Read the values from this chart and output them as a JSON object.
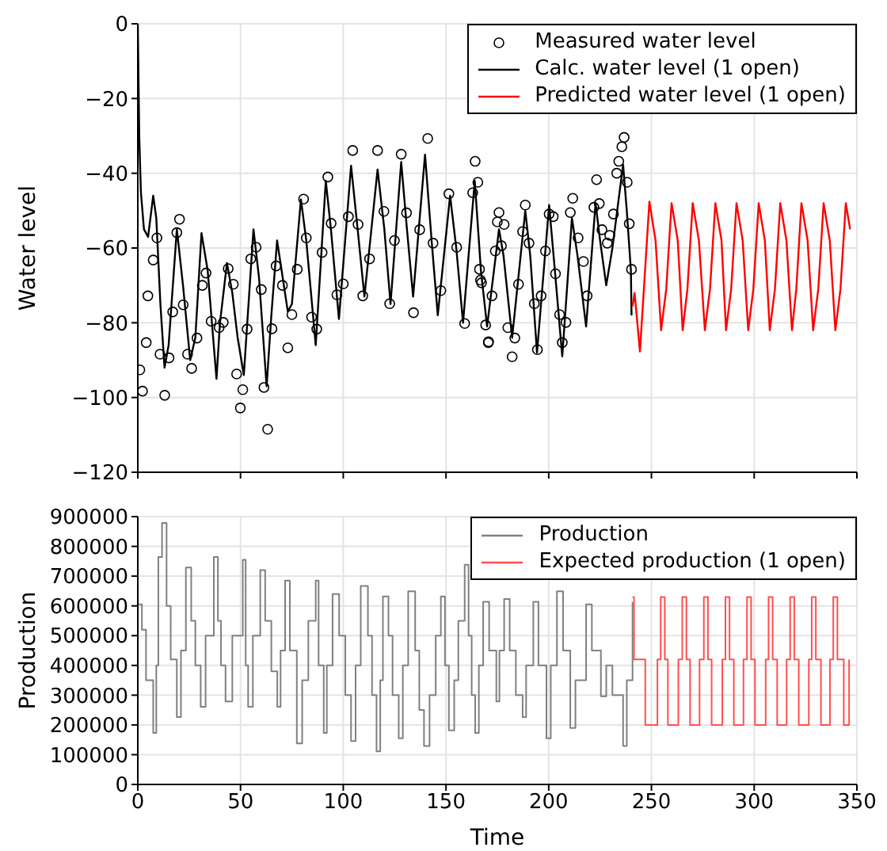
{
  "chart_data": [
    {
      "type": "line",
      "ylabel": "Water level",
      "xlim": [
        0,
        350
      ],
      "xticks": [
        0,
        50,
        100,
        150,
        200,
        250,
        300,
        350
      ],
      "ylim": [
        -120,
        0
      ],
      "yticks": [
        -120,
        -100,
        -80,
        -60,
        -40,
        -20,
        0
      ],
      "tick_labels": "y",
      "grid": true,
      "legend": "top right",
      "series": [
        {
          "name": "Measured water level",
          "type": "scatter",
          "marker": "circle",
          "color": "#000000",
          "x": [
            1.0,
            2.3,
            4.1,
            4.9,
            7.5,
            9.3,
            10.8,
            13.1,
            15.2,
            17.0,
            19.0,
            20.3,
            22.1,
            24.2,
            26.2,
            28.8,
            31.4,
            33.2,
            35.7,
            39.6,
            41.6,
            44.0,
            46.5,
            48.1,
            49.9,
            51.1,
            53.2,
            55.0,
            57.6,
            60.1,
            61.4,
            63.2,
            65.3,
            67.3,
            70.4,
            73.0,
            75.0,
            77.6,
            80.7,
            82.0,
            84.6,
            87.1,
            89.7,
            92.5,
            94.1,
            96.9,
            100.0,
            102.5,
            104.6,
            107.2,
            109.5,
            112.8,
            116.7,
            119.8,
            122.6,
            124.9,
            128.2,
            130.8,
            134.2,
            137.2,
            141.1,
            143.7,
            147.5,
            151.4,
            155.2,
            159.1,
            163.0,
            164.2,
            166.8,
            170.7,
            175.0,
            165.5,
            166.3,
            167.3,
            169.3,
            170.6,
            172.4,
            174.0,
            175.8,
            177.0,
            178.3,
            180.1,
            182.2,
            183.5,
            185.3,
            187.3,
            188.6,
            190.4,
            193.0,
            194.5,
            196.3,
            198.4,
            200.2,
            202.2,
            203.3,
            205.3,
            206.6,
            208.4,
            210.5,
            211.7,
            214.3,
            216.9,
            218.7,
            222.0,
            223.3,
            224.6,
            225.9,
            228.5,
            229.7,
            231.5,
            233.1,
            234.1,
            235.6,
            236.7,
            238.2,
            239.2,
            240.3
          ],
          "values": [
            -92.6,
            -98.3,
            -85.3,
            -72.8,
            -63.2,
            -57.3,
            -88.4,
            -99.4,
            -89.4,
            -77.1,
            -55.9,
            -52.3,
            -75.2,
            -88.4,
            -92.2,
            -84.1,
            -70.0,
            -66.7,
            -79.6,
            -81.3,
            -79.9,
            -65.5,
            -69.7,
            -93.7,
            -102.8,
            -97.9,
            -81.7,
            -62.9,
            -59.8,
            -71.1,
            -97.3,
            -108.5,
            -81.6,
            -64.8,
            -70.0,
            -86.7,
            -77.8,
            -65.7,
            -46.9,
            -57.3,
            -78.5,
            -81.7,
            -61.2,
            -41.0,
            -53.4,
            -72.5,
            -69.6,
            -51.6,
            -33.9,
            -53.7,
            -72.8,
            -62.9,
            -33.9,
            -50.2,
            -74.9,
            -58.0,
            -34.9,
            -50.6,
            -77.3,
            -55.1,
            -30.7,
            -58.7,
            -71.4,
            -45.5,
            -59.8,
            -80.2,
            -45.2,
            -36.8,
            -68.6,
            -85.1,
            -53.0,
            -42.4,
            -65.7,
            -69.3,
            -80.6,
            -85.3,
            -72.8,
            -60.8,
            -50.5,
            -59.4,
            -53.7,
            -81.3,
            -89.1,
            -84.1,
            -69.7,
            -55.6,
            -48.5,
            -58.7,
            -74.9,
            -87.2,
            -72.8,
            -60.8,
            -50.9,
            -51.6,
            -66.9,
            -77.8,
            -85.3,
            -79.9,
            -50.5,
            -46.7,
            -57.3,
            -63.6,
            -72.8,
            -49.1,
            -41.7,
            -48.1,
            -55.1,
            -58.7,
            -56.6,
            -50.9,
            -40.0,
            -36.8,
            -32.9,
            -30.4,
            -42.4,
            -53.5,
            -65.7
          ]
        },
        {
          "name": "Calc. water level (1 open)",
          "type": "line",
          "color": "#000000",
          "x": [
            0,
            0.7,
            1.5,
            3,
            5,
            7.5,
            9,
            11,
            13,
            15,
            19,
            22,
            25.5,
            28,
            31,
            34,
            38.3,
            40,
            43.4,
            46,
            48.6,
            51.6,
            56.3,
            59,
            62.7,
            65,
            67.8,
            70,
            73,
            75,
            79.4,
            82,
            86.6,
            91.5,
            94,
            97.9,
            103.8,
            107,
            110.3,
            116.7,
            120,
            123,
            128.2,
            131,
            134,
            139.8,
            143,
            146,
            152,
            155,
            158.3,
            164,
            167,
            170,
            175.8,
            178,
            182.2,
            188.6,
            191,
            194.3,
            200.2,
            203,
            206.6,
            211.3,
            214,
            218.2,
            222.8,
            225,
            228,
            231,
            236.2,
            238,
            240,
            240.3
          ],
          "values": [
            0,
            -30,
            -45,
            -55,
            -57,
            -46,
            -52,
            -75,
            -92,
            -86,
            -55,
            -70,
            -90,
            -84,
            -56,
            -66,
            -95,
            -80,
            -64,
            -72,
            -84,
            -94,
            -55,
            -68,
            -97,
            -78,
            -58,
            -66,
            -77,
            -75,
            -47,
            -58,
            -86,
            -42,
            -55,
            -79,
            -38,
            -55,
            -73,
            -39,
            -55,
            -75,
            -37,
            -55,
            -73,
            -35,
            -58,
            -78,
            -46,
            -60,
            -80,
            -42,
            -66,
            -81,
            -55,
            -62,
            -84,
            -50,
            -62,
            -88,
            -48.5,
            -66,
            -89,
            -52,
            -62,
            -81,
            -48,
            -58,
            -70,
            -60,
            -37.7,
            -50,
            -66,
            -78
          ]
        },
        {
          "name": "Predicted water level (1 open)",
          "type": "line",
          "color": "#ff0000",
          "x": [
            240.8,
            241.8,
            244.4,
            249.0,
            252.0,
            254.7,
            257.2,
            259.8,
            262.8,
            265.2,
            267.5,
            270.1,
            273.1,
            276.0,
            278.5,
            281.1,
            284.1,
            286.3,
            288.8,
            291.4,
            294.4,
            297.1,
            299.6,
            302.2,
            305.2,
            307.6,
            310.1,
            312.7,
            315.7,
            318.4,
            320.5,
            323.0,
            326.0,
            328.7,
            331.2,
            333.8,
            336.8,
            339.5,
            342.0,
            344.6,
            346.7
          ],
          "values": [
            -75.6,
            -72,
            -87.7,
            -47.6,
            -58,
            -82,
            -71,
            -48,
            -58,
            -82,
            -71,
            -48,
            -58,
            -82,
            -71,
            -48,
            -58,
            -82,
            -71,
            -48,
            -58,
            -82,
            -71,
            -48,
            -58,
            -82,
            -71,
            -48,
            -58,
            -82,
            -71,
            -48,
            -58,
            -82,
            -71,
            -48,
            -58,
            -82,
            -71,
            -48,
            -55
          ]
        }
      ]
    },
    {
      "type": "step",
      "xlabel": "Time",
      "ylabel": "Production",
      "xlim": [
        0,
        350
      ],
      "xticks": [
        0,
        50,
        100,
        150,
        200,
        250,
        300,
        350
      ],
      "ylim": [
        0,
        900000
      ],
      "yticks": [
        0,
        100000,
        200000,
        300000,
        400000,
        500000,
        600000,
        700000,
        800000,
        900000
      ],
      "grid": true,
      "legend": "top right",
      "series": [
        {
          "name": "Production",
          "color": "#808080",
          "x": [
            0,
            2,
            4,
            7.5,
            9,
            10,
            11.8,
            14,
            16,
            19,
            21,
            23.4,
            26,
            28,
            30.6,
            33,
            37,
            39,
            40.5,
            42.7,
            46,
            51.1,
            52.5,
            53.7,
            56,
            59.6,
            62,
            65,
            67.9,
            69.5,
            71.7,
            74,
            77.4,
            80,
            83,
            86.6,
            88,
            90.5,
            92,
            94.8,
            98,
            101,
            103.8,
            106,
            108.5,
            112,
            114,
            116.2,
            118,
            119.3,
            122,
            124,
            127,
            129,
            131.6,
            135,
            137,
            139.3,
            142,
            145,
            147.5,
            149.5,
            151.4,
            154,
            156,
            159.1,
            161,
            162.5,
            164.2,
            166,
            168.1,
            171,
            174.5,
            176,
            178.3,
            181,
            184,
            187.3,
            189,
            192.5,
            195,
            198.9,
            201,
            204.0,
            207,
            210.5,
            213,
            218.2,
            221,
            225.4,
            228,
            231,
            236.2,
            238,
            240.8
          ],
          "values": [
            605000,
            520000,
            350000,
            173000,
            400000,
            764000,
            879000,
            600000,
            420000,
            226000,
            450000,
            729000,
            550000,
            400000,
            261000,
            500000,
            764000,
            550000,
            400000,
            279000,
            500000,
            755000,
            400000,
            261000,
            500000,
            720000,
            550000,
            380000,
            261000,
            450000,
            685000,
            450000,
            138000,
            350000,
            550000,
            685000,
            400000,
            173000,
            400000,
            640000,
            500000,
            300000,
            146000,
            400000,
            667000,
            500000,
            300000,
            111000,
            350000,
            632000,
            500000,
            300000,
            155000,
            400000,
            649000,
            450000,
            250000,
            129000,
            300000,
            500000,
            632000,
            400000,
            182000,
            350000,
            550000,
            738000,
            500000,
            300000,
            173000,
            400000,
            614000,
            450000,
            279000,
            450000,
            623000,
            450000,
            300000,
            226000,
            400000,
            614000,
            400000,
            155000,
            400000,
            649000,
            450000,
            190000,
            350000,
            605000,
            450000,
            296000,
            400000,
            300000,
            129000,
            350000,
            614000
          ]
        },
        {
          "name": "Expected production (1 open)",
          "color": "#ff5050",
          "x": [
            240.8,
            241.5,
            247.0,
            252.9,
            254.5,
            256.5,
            258.0,
            263.1,
            265,
            267,
            268.8,
            273.4,
            275.5,
            277.5,
            279.3,
            284.5,
            286,
            288,
            290.1,
            294.8,
            296.5,
            298.5,
            300.4,
            305.6,
            307,
            309,
            311.2,
            315.8,
            317.5,
            319.5,
            321.7,
            326.6,
            328,
            330,
            332.5,
            336.9,
            338.5,
            340.5,
            343.6,
            346.2
          ],
          "values": [
            630000,
            420000,
            200000,
            420000,
            630000,
            420000,
            200000,
            420000,
            630000,
            420000,
            200000,
            420000,
            630000,
            420000,
            200000,
            420000,
            630000,
            420000,
            200000,
            420000,
            630000,
            420000,
            200000,
            420000,
            630000,
            420000,
            200000,
            420000,
            630000,
            420000,
            200000,
            420000,
            630000,
            420000,
            200000,
            420000,
            630000,
            420000,
            200000,
            420000
          ]
        }
      ]
    }
  ]
}
